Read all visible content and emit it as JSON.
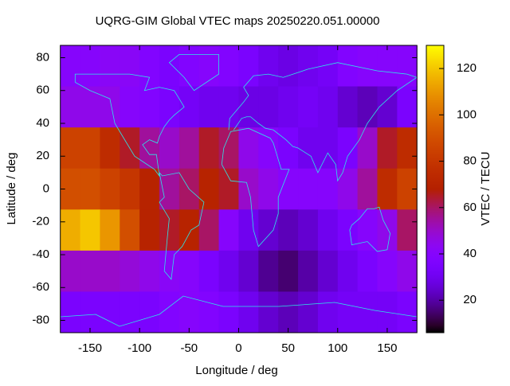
{
  "chart_data": {
    "type": "heatmap",
    "title": "UQRG-GIM Global VTEC maps 20250220.051.00000",
    "x_label": "Longitude / deg",
    "y_label": "Latitude / deg",
    "colorbar_label": "VTEC / TECU",
    "x": [
      -170,
      -150,
      -130,
      -110,
      -90,
      -70,
      -50,
      -30,
      -10,
      10,
      30,
      50,
      70,
      90,
      110,
      130,
      150,
      170
    ],
    "y": [
      75,
      50,
      25,
      0,
      -25,
      -50,
      -75
    ],
    "values": [
      [
        40,
        40,
        42,
        42,
        38,
        35,
        38,
        40,
        38,
        35,
        30,
        28,
        30,
        32,
        38,
        40,
        40,
        40
      ],
      [
        45,
        45,
        45,
        40,
        38,
        35,
        32,
        30,
        30,
        28,
        28,
        30,
        32,
        30,
        25,
        22,
        25,
        35
      ],
      [
        85,
        85,
        75,
        65,
        55,
        50,
        55,
        65,
        60,
        45,
        40,
        35,
        30,
        30,
        35,
        50,
        65,
        75
      ],
      [
        90,
        90,
        85,
        80,
        70,
        55,
        60,
        70,
        65,
        50,
        45,
        40,
        40,
        40,
        45,
        55,
        75,
        85
      ],
      [
        115,
        120,
        110,
        90,
        70,
        65,
        70,
        60,
        40,
        30,
        25,
        22,
        25,
        30,
        35,
        40,
        45,
        60
      ],
      [
        50,
        50,
        50,
        48,
        45,
        42,
        40,
        35,
        30,
        25,
        18,
        15,
        20,
        25,
        30,
        35,
        40,
        45
      ],
      [
        35,
        35,
        35,
        35,
        35,
        38,
        40,
        38,
        35,
        30,
        25,
        22,
        25,
        30,
        32,
        32,
        32,
        35
      ]
    ],
    "xlim": [
      -180,
      180
    ],
    "ylim": [
      -87.5,
      87.5
    ],
    "zlim": [
      6,
      130
    ],
    "xticks": [
      -150,
      -100,
      -50,
      0,
      50,
      100,
      150
    ],
    "yticks": [
      -80,
      -60,
      -40,
      -20,
      0,
      20,
      40,
      60,
      80
    ],
    "zticks": [
      20,
      40,
      60,
      80,
      100,
      120
    ]
  }
}
